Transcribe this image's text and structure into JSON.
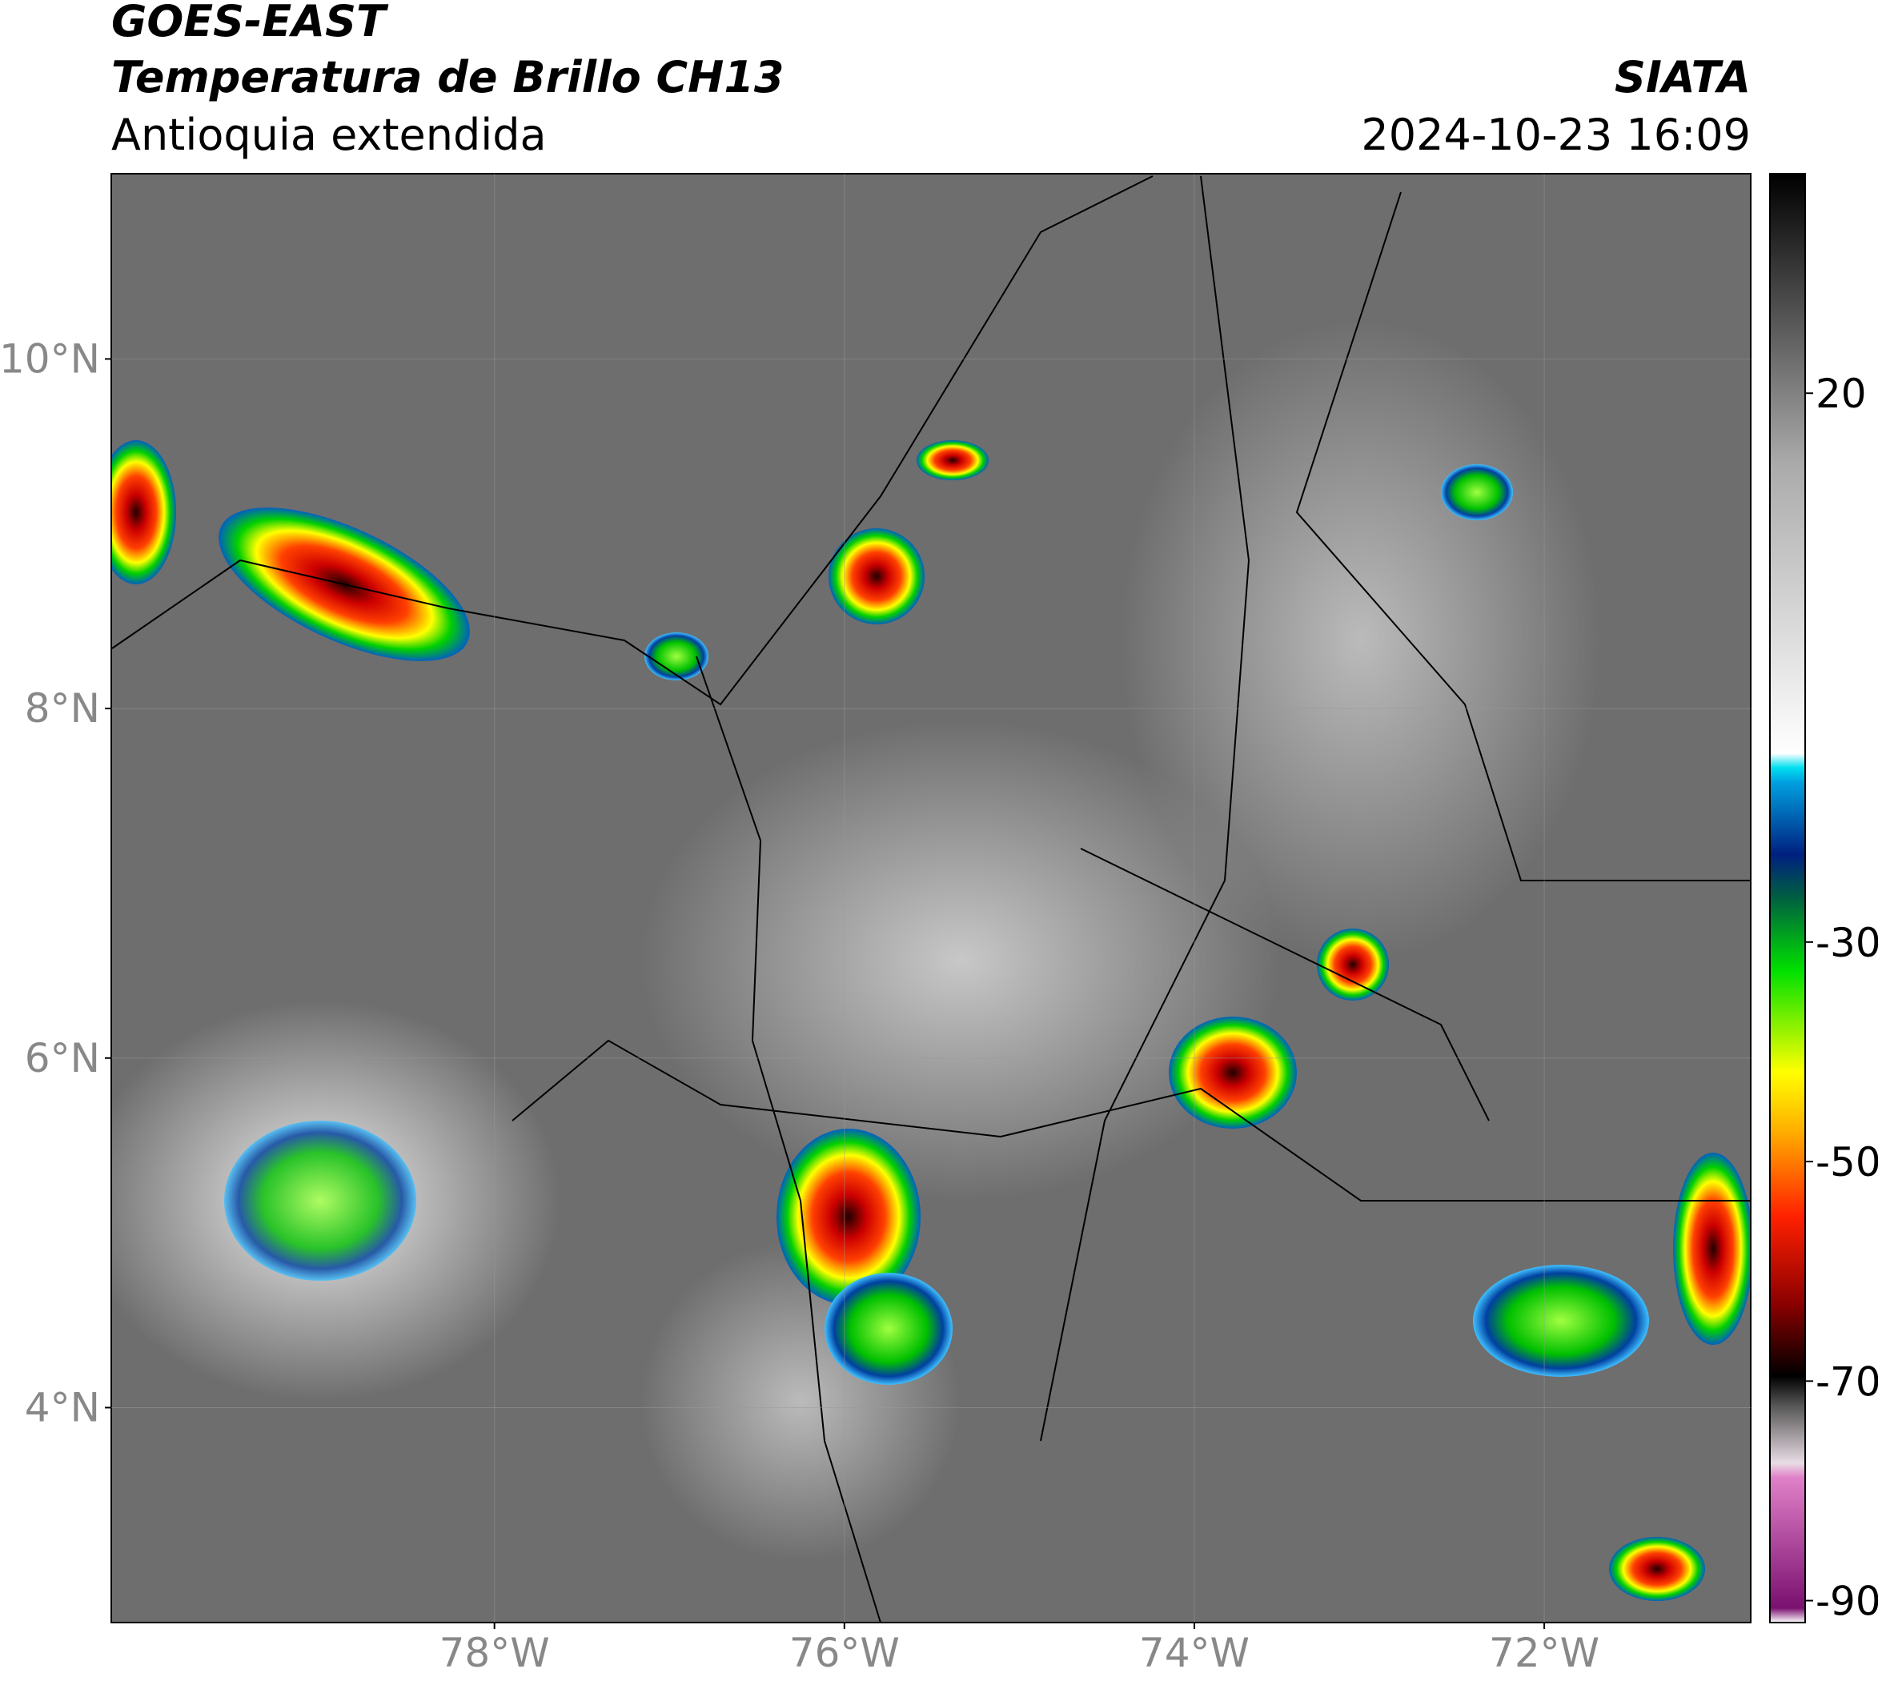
{
  "header": {
    "satellite": "GOES-EAST",
    "product": "Temperatura de Brillo CH13",
    "region": "Antioquia extendida",
    "source": "SIATA",
    "datetime": "2024-10-23 16:09"
  },
  "map": {
    "xlim": [
      -80.19,
      -70.82
    ],
    "ylim": [
      2.77,
      11.06
    ],
    "xticks": [
      {
        "value": -78,
        "label": "78°W"
      },
      {
        "value": -76,
        "label": "76°W"
      },
      {
        "value": -74,
        "label": "74°W"
      },
      {
        "value": -72,
        "label": "72°W"
      }
    ],
    "yticks": [
      {
        "value": 10,
        "label": "10°N"
      },
      {
        "value": 8,
        "label": "8°N"
      },
      {
        "value": 6,
        "label": "6°N"
      },
      {
        "value": 4,
        "label": "4°N"
      }
    ],
    "grid": true
  },
  "colorbar": {
    "lim": [
      -92,
      40
    ],
    "ticks": [
      20,
      -30,
      -50,
      -70,
      -90
    ]
  }
}
